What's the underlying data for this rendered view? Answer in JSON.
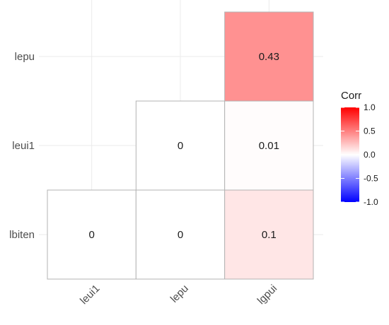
{
  "chart_data": {
    "type": "heatmap",
    "x_categories": [
      "leui1",
      "lepu",
      "lgpui"
    ],
    "y_categories": [
      "lbiten",
      "leui1",
      "lepu"
    ],
    "cells": [
      {
        "x": "leui1",
        "y": "lbiten",
        "value": 0,
        "label": "0"
      },
      {
        "x": "lepu",
        "y": "lbiten",
        "value": 0,
        "label": "0"
      },
      {
        "x": "lgpui",
        "y": "lbiten",
        "value": 0.1,
        "label": "0.1"
      },
      {
        "x": "lepu",
        "y": "leui1",
        "value": 0,
        "label": "0"
      },
      {
        "x": "lgpui",
        "y": "leui1",
        "value": 0.01,
        "label": "0.01"
      },
      {
        "x": "lgpui",
        "y": "lepu",
        "value": 0.43,
        "label": "0.43"
      }
    ],
    "legend": {
      "title": "Corr",
      "breaks": [
        "1.0",
        "0.5",
        "0.0",
        "-0.5",
        "-1.0"
      ],
      "limits": [
        -1,
        1
      ],
      "low_color": "#0000ff",
      "mid_color": "#ffffff",
      "high_color": "#ff0000"
    },
    "grid": true,
    "legend_position": "right"
  }
}
